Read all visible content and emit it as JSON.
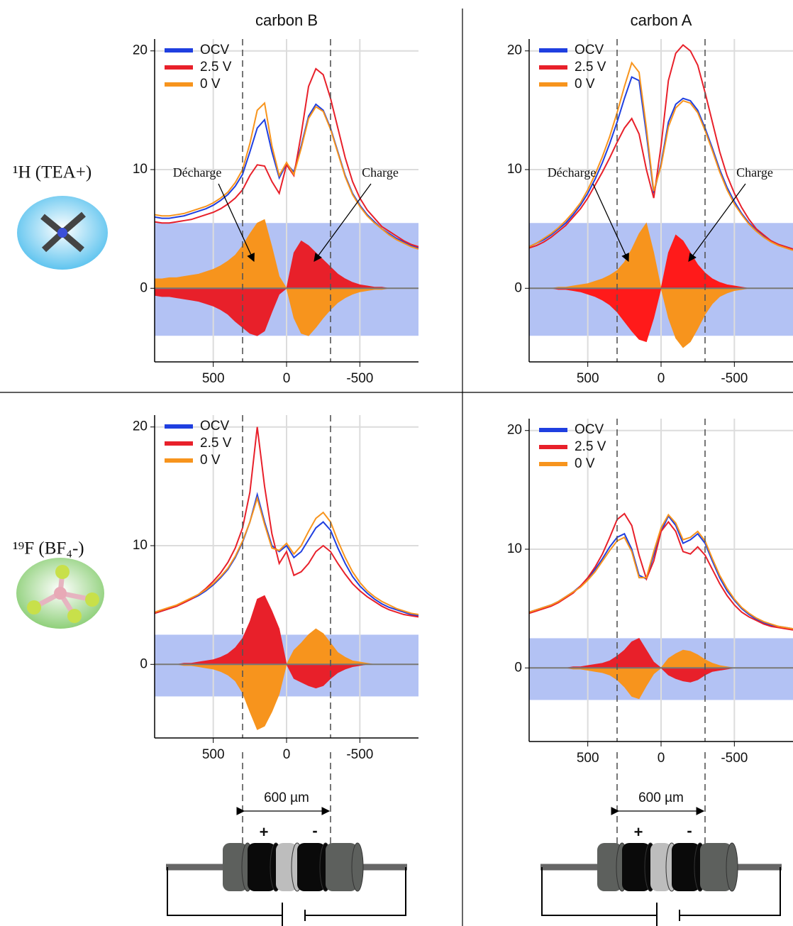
{
  "row_labels": [
    "¹H (TEA+)",
    "¹⁹F (BF₄-)"
  ],
  "scale_label": "600 µm",
  "electrodes": [
    "+",
    "-"
  ],
  "chart_data": [
    {
      "type": "line",
      "title": "carbon B",
      "annotations": [
        "Décharge",
        "Charge"
      ],
      "x": [
        900,
        850,
        800,
        750,
        700,
        650,
        600,
        550,
        500,
        450,
        400,
        350,
        300,
        250,
        200,
        150,
        100,
        50,
        0,
        -50,
        -100,
        -150,
        -200,
        -250,
        -300,
        -350,
        -400,
        -450,
        -500,
        -550,
        -600,
        -650,
        -700,
        -750,
        -800,
        -850,
        -900
      ],
      "xlim": [
        900,
        -900
      ],
      "xticks": [
        500,
        0,
        -500
      ],
      "ylim": [
        -6.2,
        21
      ],
      "yticks": [
        0,
        10,
        20
      ],
      "grid": true,
      "band": [
        -4,
        5.5
      ],
      "markers": [
        300,
        -300
      ],
      "series": [
        {
          "name": "OCV",
          "color": "#1f3fe0",
          "values": [
            6.0,
            5.9,
            5.9,
            6.0,
            6.1,
            6.3,
            6.5,
            6.7,
            7.0,
            7.4,
            7.9,
            8.6,
            9.6,
            11.5,
            13.5,
            14.2,
            11.5,
            9.3,
            10.5,
            9.8,
            12.0,
            14.5,
            15.5,
            15.0,
            13.5,
            11.5,
            9.5,
            8.0,
            7.0,
            6.2,
            5.6,
            5.0,
            4.6,
            4.2,
            3.9,
            3.6,
            3.4
          ]
        },
        {
          "name": "2.5 V",
          "color": "#e8202a",
          "values": [
            5.6,
            5.5,
            5.5,
            5.6,
            5.7,
            5.8,
            6.0,
            6.2,
            6.4,
            6.7,
            7.1,
            7.6,
            8.3,
            9.5,
            10.4,
            10.3,
            9.0,
            8.0,
            10.4,
            9.5,
            13.0,
            17.0,
            18.5,
            18.0,
            16.0,
            13.5,
            11.0,
            9.0,
            7.6,
            6.6,
            5.9,
            5.2,
            4.8,
            4.4,
            4.0,
            3.7,
            3.5
          ]
        },
        {
          "name": "0 V",
          "color": "#f7941d",
          "values": [
            6.2,
            6.1,
            6.1,
            6.2,
            6.3,
            6.5,
            6.7,
            6.9,
            7.2,
            7.6,
            8.1,
            8.9,
            10.0,
            12.2,
            15.0,
            15.6,
            12.0,
            9.5,
            10.6,
            9.6,
            11.8,
            14.3,
            15.3,
            14.9,
            13.4,
            11.4,
            9.4,
            7.9,
            6.9,
            6.1,
            5.5,
            5.0,
            4.5,
            4.1,
            3.8,
            3.5,
            3.3
          ]
        }
      ],
      "fills": [
        {
          "color": "#f7941d",
          "values": [
            0.8,
            0.8,
            0.9,
            0.9,
            1.0,
            1.1,
            1.2,
            1.4,
            1.6,
            1.9,
            2.3,
            2.8,
            3.6,
            4.6,
            5.5,
            5.8,
            3.5,
            1.0,
            0,
            -2.5,
            -3.8,
            -4.0,
            -3.3,
            -2.5,
            -1.8,
            -1.2,
            -0.8,
            -0.5,
            -0.3,
            -0.2,
            -0.1,
            -0.1,
            0,
            0,
            0,
            0,
            0
          ]
        },
        {
          "color": "#e8202a",
          "values": [
            -0.6,
            -0.7,
            -0.7,
            -0.8,
            -0.9,
            -1.0,
            -1.1,
            -1.3,
            -1.5,
            -1.8,
            -2.2,
            -2.8,
            -3.3,
            -3.8,
            -4.0,
            -3.6,
            -2.0,
            -0.5,
            0,
            3.0,
            4.0,
            3.6,
            3.0,
            2.4,
            1.8,
            1.2,
            0.8,
            0.5,
            0.3,
            0.2,
            0.1,
            0.1,
            0,
            0,
            0,
            0,
            0
          ]
        }
      ]
    },
    {
      "type": "line",
      "title": "carbon A",
      "annotations": [
        "Décharge",
        "Charge"
      ],
      "x": [
        900,
        850,
        800,
        750,
        700,
        650,
        600,
        550,
        500,
        450,
        400,
        350,
        300,
        250,
        200,
        150,
        100,
        50,
        0,
        -50,
        -100,
        -150,
        -200,
        -250,
        -300,
        -350,
        -400,
        -450,
        -500,
        -550,
        -600,
        -650,
        -700,
        -750,
        -800,
        -850,
        -900
      ],
      "xlim": [
        900,
        -900
      ],
      "xticks": [
        500,
        0,
        -500
      ],
      "ylim": [
        -6.2,
        21
      ],
      "yticks": [
        0,
        10,
        20
      ],
      "grid": true,
      "band": [
        -4,
        5.5
      ],
      "markers": [
        300,
        -300
      ],
      "series": [
        {
          "name": "OCV",
          "color": "#1f3fe0",
          "values": [
            3.5,
            3.8,
            4.1,
            4.5,
            5.0,
            5.5,
            6.2,
            7.0,
            8.0,
            9.2,
            10.6,
            12.2,
            14.0,
            16.0,
            17.8,
            17.5,
            13.0,
            8.0,
            10.5,
            14.0,
            15.5,
            16.0,
            15.8,
            15.0,
            13.5,
            11.8,
            10.0,
            8.5,
            7.3,
            6.3,
            5.5,
            4.9,
            4.4,
            4.0,
            3.7,
            3.5,
            3.3
          ]
        },
        {
          "name": "2.5 V",
          "color": "#e8202a",
          "values": [
            3.4,
            3.6,
            3.9,
            4.3,
            4.8,
            5.3,
            6.0,
            6.7,
            7.6,
            8.7,
            9.8,
            11.0,
            12.3,
            13.5,
            14.3,
            13.0,
            10.0,
            7.6,
            12.0,
            17.5,
            19.8,
            20.5,
            20.0,
            18.8,
            16.5,
            14.0,
            11.5,
            9.5,
            8.0,
            6.8,
            5.8,
            5.0,
            4.5,
            4.0,
            3.7,
            3.5,
            3.3
          ]
        },
        {
          "name": "0 V",
          "color": "#f7941d",
          "values": [
            3.5,
            3.8,
            4.2,
            4.6,
            5.1,
            5.7,
            6.4,
            7.2,
            8.3,
            9.6,
            11.1,
            12.8,
            14.8,
            17.0,
            19.0,
            18.2,
            13.5,
            8.2,
            10.3,
            13.6,
            15.2,
            15.8,
            15.6,
            14.8,
            13.3,
            11.6,
            9.8,
            8.3,
            7.1,
            6.2,
            5.4,
            4.8,
            4.3,
            3.9,
            3.6,
            3.4,
            3.2
          ]
        }
      ],
      "fills": [
        {
          "color": "#f7941d",
          "values": [
            0,
            0,
            0,
            0,
            0.1,
            0.1,
            0.2,
            0.3,
            0.4,
            0.6,
            0.8,
            1.1,
            1.5,
            2.2,
            3.3,
            4.6,
            5.5,
            3.0,
            0,
            -2.5,
            -4.2,
            -5.0,
            -4.5,
            -3.4,
            -2.2,
            -1.3,
            -0.7,
            -0.4,
            -0.2,
            -0.1,
            0,
            0,
            0,
            0,
            0,
            0,
            0
          ]
        },
        {
          "color": "#ff1a1a",
          "values": [
            0,
            0,
            0,
            0,
            -0.1,
            -0.1,
            -0.2,
            -0.3,
            -0.5,
            -0.7,
            -1.0,
            -1.4,
            -2.0,
            -2.8,
            -3.6,
            -4.3,
            -4.5,
            -2.5,
            0,
            3.0,
            4.5,
            4.0,
            3.0,
            2.0,
            1.3,
            0.8,
            0.5,
            0.3,
            0.2,
            0.1,
            0,
            0,
            0,
            0,
            0,
            0,
            0
          ]
        }
      ]
    },
    {
      "type": "line",
      "x": [
        900,
        850,
        800,
        750,
        700,
        650,
        600,
        550,
        500,
        450,
        400,
        350,
        300,
        250,
        200,
        150,
        100,
        50,
        0,
        -50,
        -100,
        -150,
        -200,
        -250,
        -300,
        -350,
        -400,
        -450,
        -500,
        -550,
        -600,
        -650,
        -700,
        -750,
        -800,
        -850,
        -900
      ],
      "xlim": [
        900,
        -900
      ],
      "xticks": [
        500,
        0,
        -500
      ],
      "ylim": [
        -6.2,
        21
      ],
      "yticks": [
        0,
        10,
        20
      ],
      "grid": true,
      "band": [
        -2.7,
        2.5
      ],
      "markers": [
        300,
        -300
      ],
      "series": [
        {
          "name": "OCV",
          "color": "#1f3fe0",
          "values": [
            4.3,
            4.5,
            4.7,
            4.9,
            5.2,
            5.5,
            5.8,
            6.2,
            6.7,
            7.3,
            8.0,
            9.0,
            10.3,
            12.0,
            14.3,
            12.0,
            10.0,
            9.5,
            10.0,
            9.0,
            9.5,
            10.5,
            11.5,
            12.0,
            11.3,
            9.8,
            8.5,
            7.4,
            6.6,
            6.0,
            5.5,
            5.1,
            4.8,
            4.6,
            4.4,
            4.2,
            4.1
          ]
        },
        {
          "name": "2.5 V",
          "color": "#e8202a",
          "values": [
            4.3,
            4.5,
            4.7,
            4.9,
            5.2,
            5.5,
            5.9,
            6.4,
            7.0,
            7.7,
            8.6,
            9.8,
            11.5,
            14.5,
            20.0,
            15.0,
            11.0,
            8.5,
            9.5,
            7.5,
            7.8,
            8.5,
            9.5,
            10.0,
            9.5,
            8.5,
            7.6,
            6.8,
            6.2,
            5.7,
            5.3,
            4.9,
            4.6,
            4.4,
            4.2,
            4.1,
            4.0
          ]
        },
        {
          "name": "0 V",
          "color": "#f7941d",
          "values": [
            4.4,
            4.6,
            4.8,
            5.0,
            5.3,
            5.6,
            5.9,
            6.3,
            6.8,
            7.4,
            8.1,
            9.1,
            10.4,
            12.0,
            14.0,
            11.8,
            9.8,
            9.6,
            10.2,
            9.3,
            10.0,
            11.2,
            12.3,
            12.8,
            12.0,
            10.4,
            9.0,
            7.8,
            6.9,
            6.2,
            5.7,
            5.3,
            5.0,
            4.7,
            4.5,
            4.3,
            4.2
          ]
        }
      ],
      "fills": [
        {
          "color": "#e8202a",
          "values": [
            0,
            0,
            0,
            0,
            0.1,
            0.1,
            0.2,
            0.3,
            0.4,
            0.6,
            0.9,
            1.4,
            2.2,
            3.6,
            5.5,
            5.8,
            4.5,
            3.0,
            0,
            -1.2,
            -1.5,
            -1.8,
            -2.0,
            -1.8,
            -1.2,
            -0.7,
            -0.4,
            -0.2,
            -0.1,
            0,
            0,
            0,
            0,
            0,
            0,
            0,
            0
          ]
        },
        {
          "color": "#f7941d",
          "values": [
            0,
            0,
            0,
            0,
            -0.1,
            -0.1,
            -0.2,
            -0.3,
            -0.4,
            -0.6,
            -0.9,
            -1.4,
            -2.4,
            -4.0,
            -5.5,
            -5.2,
            -4.0,
            -2.5,
            0,
            1.2,
            1.8,
            2.5,
            3.0,
            2.6,
            1.8,
            1.0,
            0.6,
            0.3,
            0.2,
            0.1,
            0,
            0,
            0,
            0,
            0,
            0,
            0
          ]
        }
      ]
    },
    {
      "type": "line",
      "x": [
        900,
        850,
        800,
        750,
        700,
        650,
        600,
        550,
        500,
        450,
        400,
        350,
        300,
        250,
        200,
        150,
        100,
        50,
        0,
        -50,
        -100,
        -150,
        -200,
        -250,
        -300,
        -350,
        -400,
        -450,
        -500,
        -550,
        -600,
        -650,
        -700,
        -750,
        -800,
        -850,
        -900
      ],
      "xlim": [
        900,
        -900
      ],
      "xticks": [
        500,
        0,
        -500
      ],
      "ylim": [
        -6.2,
        21
      ],
      "yticks": [
        0,
        10,
        20
      ],
      "grid": true,
      "band": [
        -2.7,
        2.5
      ],
      "markers": [
        300,
        -300
      ],
      "series": [
        {
          "name": "OCV",
          "color": "#1f3fe0",
          "values": [
            4.7,
            4.9,
            5.1,
            5.3,
            5.6,
            6.0,
            6.4,
            6.9,
            7.5,
            8.3,
            9.2,
            10.2,
            11.0,
            11.3,
            10.0,
            7.8,
            7.5,
            9.5,
            11.5,
            12.8,
            12.0,
            10.5,
            10.8,
            11.3,
            10.5,
            9.0,
            7.6,
            6.5,
            5.7,
            5.0,
            4.5,
            4.1,
            3.8,
            3.6,
            3.5,
            3.4,
            3.3
          ]
        },
        {
          "name": "2.5 V",
          "color": "#e8202a",
          "values": [
            4.6,
            4.8,
            5.0,
            5.2,
            5.5,
            5.9,
            6.3,
            6.9,
            7.6,
            8.5,
            9.6,
            11.0,
            12.5,
            13.0,
            12.0,
            9.5,
            7.5,
            9.0,
            11.5,
            12.3,
            11.5,
            9.8,
            9.6,
            10.2,
            9.5,
            8.3,
            7.1,
            6.1,
            5.3,
            4.7,
            4.3,
            4.0,
            3.7,
            3.5,
            3.4,
            3.3,
            3.2
          ]
        },
        {
          "name": "0 V",
          "color": "#f7941d",
          "values": [
            4.7,
            4.9,
            5.1,
            5.3,
            5.6,
            6.0,
            6.4,
            6.8,
            7.4,
            8.1,
            9.0,
            9.9,
            10.7,
            11.0,
            9.8,
            7.6,
            7.6,
            9.8,
            11.8,
            12.9,
            12.2,
            10.8,
            11.0,
            11.5,
            10.7,
            9.2,
            7.8,
            6.7,
            5.8,
            5.1,
            4.6,
            4.2,
            3.9,
            3.7,
            3.5,
            3.4,
            3.3
          ]
        }
      ],
      "fills": [
        {
          "color": "#e8202a",
          "values": [
            0,
            0,
            0,
            0,
            0,
            0,
            0.1,
            0.1,
            0.2,
            0.3,
            0.4,
            0.6,
            1.0,
            1.5,
            2.2,
            2.5,
            1.5,
            0.5,
            0,
            -0.6,
            -0.9,
            -1.1,
            -1.2,
            -1.0,
            -0.6,
            -0.3,
            -0.2,
            -0.1,
            0,
            0,
            0,
            0,
            0,
            0,
            0,
            0,
            0
          ]
        },
        {
          "color": "#f7941d",
          "values": [
            0,
            0,
            0,
            0,
            0,
            0,
            -0.1,
            -0.1,
            -0.2,
            -0.3,
            -0.4,
            -0.6,
            -1.0,
            -1.6,
            -2.4,
            -2.6,
            -1.5,
            -0.5,
            0,
            0.8,
            1.2,
            1.5,
            1.4,
            1.1,
            0.7,
            0.4,
            0.2,
            0.1,
            0,
            0,
            0,
            0,
            0,
            0,
            0,
            0,
            0
          ]
        }
      ]
    }
  ]
}
